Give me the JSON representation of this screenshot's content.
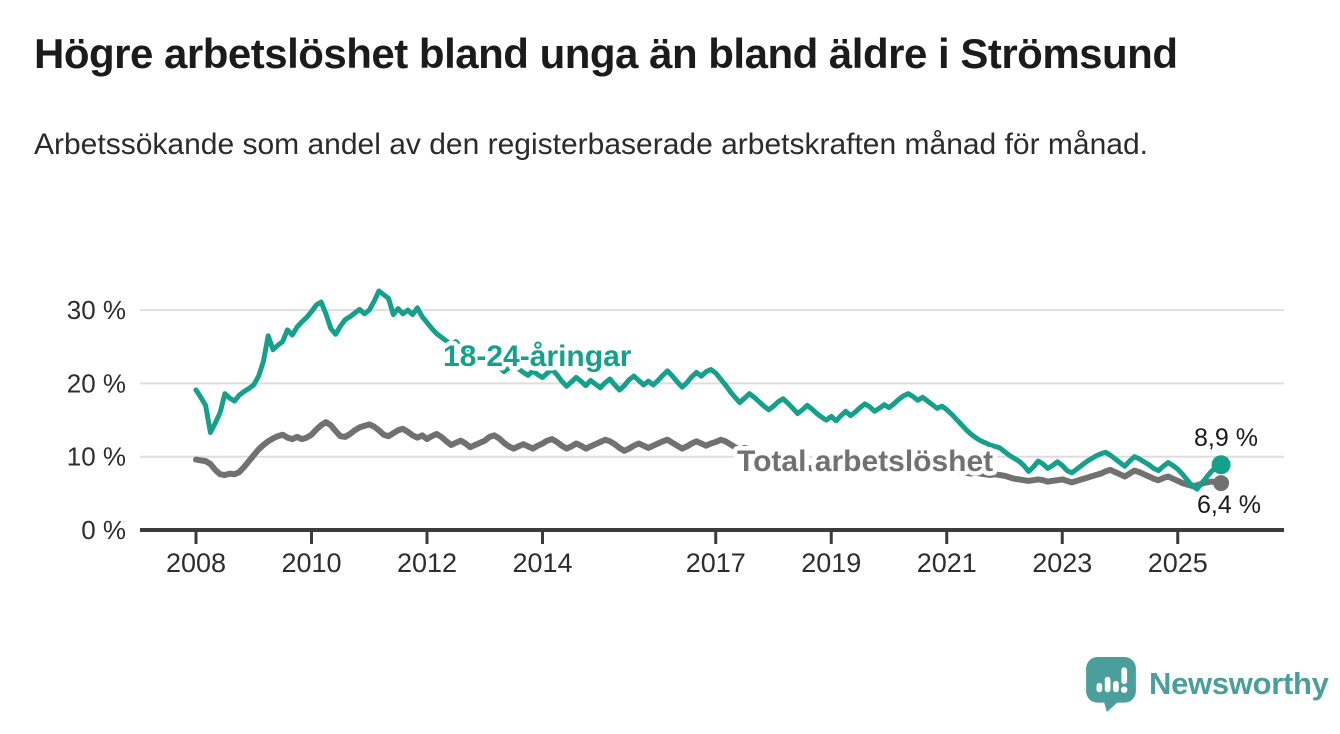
{
  "header": {
    "title": "Högre arbetslöshet bland unga än bland äldre i Strömsund",
    "subtitle": "Arbetssökande som andel av den registerbaserade arbetskraften månad för månad."
  },
  "chart_data": {
    "type": "line",
    "title": "Högre arbetslöshet bland unga än bland äldre i Strömsund",
    "subtitle": "Arbetssökande som andel av den registerbaserade arbetskraften månad för månad.",
    "grid": "horizontal",
    "legend_position": "inline-labels-on-lines",
    "x_axis": {
      "start_year": 2008,
      "months_per_point": 1,
      "ticks": [
        "2008",
        "2010",
        "2012",
        "2014",
        "2017",
        "2019",
        "2021",
        "2023",
        "2025"
      ]
    },
    "y_axis": {
      "unit": "%",
      "range": [
        0,
        34
      ],
      "ticks": [
        {
          "label": "0 %",
          "value": 0
        },
        {
          "label": "10 %",
          "value": 10
        },
        {
          "label": "20 %",
          "value": 20
        },
        {
          "label": "30 %",
          "value": 30
        }
      ]
    },
    "series": [
      {
        "name": "18-24-åringar",
        "color": "#16a08c",
        "end_label": "8,9 %",
        "end_value": 8.9,
        "values": [
          19.1,
          18.1,
          17.0,
          13.3,
          14.6,
          16.0,
          18.6,
          18.0,
          17.6,
          18.4,
          18.9,
          19.3,
          19.8,
          21.0,
          23.0,
          26.5,
          24.6,
          25.2,
          25.7,
          27.3,
          26.6,
          27.7,
          28.4,
          29.0,
          29.8,
          30.7,
          31.1,
          29.5,
          27.5,
          26.7,
          27.8,
          28.7,
          29.1,
          29.6,
          30.1,
          29.5,
          30.0,
          31.2,
          32.6,
          32.1,
          31.6,
          29.4,
          30.2,
          29.5,
          30.0,
          29.4,
          30.3,
          29.1,
          28.3,
          27.5,
          26.8,
          26.3,
          25.8,
          25.2,
          25.7,
          25.0,
          24.4,
          23.9,
          24.3,
          23.6,
          23.0,
          23.6,
          22.9,
          22.2,
          21.6,
          22.1,
          22.7,
          22.0,
          21.5,
          21.1,
          21.7,
          21.2,
          20.8,
          21.4,
          21.9,
          21.2,
          20.3,
          19.6,
          20.2,
          20.8,
          20.3,
          19.7,
          20.4,
          19.9,
          19.4,
          20.1,
          20.6,
          19.8,
          19.1,
          19.7,
          20.5,
          21.0,
          20.4,
          19.8,
          20.3,
          19.8,
          20.4,
          21.1,
          21.7,
          21.0,
          20.2,
          19.5,
          20.1,
          20.9,
          21.5,
          21.0,
          21.6,
          21.9,
          21.4,
          20.6,
          19.8,
          18.9,
          18.1,
          17.4,
          18.0,
          18.6,
          18.1,
          17.5,
          16.9,
          16.4,
          16.9,
          17.5,
          17.9,
          17.3,
          16.6,
          15.9,
          16.4,
          17.0,
          16.5,
          15.9,
          15.4,
          15.0,
          15.5,
          14.9,
          15.6,
          16.2,
          15.6,
          16.1,
          16.7,
          17.2,
          16.8,
          16.2,
          16.6,
          17.1,
          16.7,
          17.2,
          17.8,
          18.3,
          18.6,
          18.2,
          17.7,
          18.1,
          17.6,
          17.1,
          16.6,
          16.9,
          16.4,
          15.8,
          15.1,
          14.4,
          13.7,
          13.1,
          12.6,
          12.2,
          11.9,
          11.6,
          11.4,
          11.2,
          10.7,
          10.2,
          9.8,
          9.4,
          8.8,
          8.0,
          8.6,
          9.4,
          9.0,
          8.4,
          8.8,
          9.3,
          8.8,
          8.1,
          7.8,
          8.3,
          8.8,
          9.3,
          9.7,
          10.1,
          10.4,
          10.6,
          10.2,
          9.7,
          9.2,
          8.7,
          9.4,
          10.0,
          9.7,
          9.3,
          8.9,
          8.4,
          8.1,
          8.7,
          9.2,
          8.8,
          8.3,
          7.6,
          6.8,
          6.0,
          5.6,
          6.4,
          7.2,
          8.0,
          8.6,
          8.9
        ]
      },
      {
        "name": "Total arbetslöshet",
        "color": "#717171",
        "end_label": "6,4 %",
        "end_value": 6.4,
        "values": [
          9.6,
          9.5,
          9.4,
          9.0,
          8.2,
          7.6,
          7.5,
          7.7,
          7.6,
          7.9,
          8.6,
          9.4,
          10.2,
          11.0,
          11.6,
          12.1,
          12.5,
          12.8,
          13.0,
          12.6,
          12.4,
          12.7,
          12.4,
          12.6,
          13.0,
          13.7,
          14.3,
          14.7,
          14.3,
          13.5,
          12.8,
          12.7,
          13.1,
          13.6,
          14.0,
          14.2,
          14.4,
          14.1,
          13.6,
          13.0,
          12.8,
          13.2,
          13.6,
          13.8,
          13.4,
          12.9,
          12.6,
          12.9,
          12.4,
          12.8,
          13.1,
          12.7,
          12.1,
          11.6,
          11.9,
          12.2,
          11.8,
          11.3,
          11.6,
          11.9,
          12.2,
          12.7,
          12.9,
          12.5,
          11.9,
          11.4,
          11.1,
          11.4,
          11.7,
          11.4,
          11.1,
          11.5,
          11.8,
          12.2,
          12.4,
          12.0,
          11.5,
          11.1,
          11.4,
          11.8,
          11.5,
          11.1,
          11.4,
          11.7,
          12.0,
          12.3,
          12.1,
          11.7,
          11.2,
          10.8,
          11.1,
          11.5,
          11.8,
          11.5,
          11.2,
          11.5,
          11.8,
          12.1,
          12.3,
          11.9,
          11.5,
          11.1,
          11.4,
          11.8,
          12.1,
          11.8,
          11.5,
          11.8,
          12.0,
          12.3,
          12.1,
          11.7,
          11.3,
          10.9,
          11.2,
          11.0,
          10.6,
          10.1,
          9.7,
          9.3,
          9.0,
          8.8,
          8.6,
          8.5,
          8.4,
          8.3,
          8.4,
          8.5,
          8.4,
          8.3,
          8.4,
          8.5,
          8.4,
          8.3,
          8.4,
          8.5,
          8.4,
          8.3,
          8.4,
          8.6,
          8.5,
          8.4,
          8.5,
          8.6,
          8.7,
          8.8,
          9.0,
          9.2,
          9.1,
          8.9,
          8.8,
          8.7,
          8.6,
          8.5,
          8.4,
          8.3,
          8.2,
          8.1,
          8.0,
          7.9,
          7.8,
          7.7,
          7.8,
          7.7,
          7.6,
          7.5,
          7.6,
          7.5,
          7.4,
          7.2,
          7.0,
          6.9,
          6.8,
          6.7,
          6.8,
          6.9,
          6.8,
          6.6,
          6.7,
          6.8,
          6.9,
          6.7,
          6.5,
          6.7,
          6.9,
          7.1,
          7.3,
          7.5,
          7.7,
          8.0,
          8.2,
          7.9,
          7.6,
          7.3,
          7.7,
          8.1,
          7.9,
          7.6,
          7.3,
          7.0,
          6.8,
          7.1,
          7.3,
          7.0,
          6.7,
          6.4,
          6.2,
          6.0,
          6.1,
          6.3,
          6.5,
          6.6,
          6.5,
          6.4
        ]
      }
    ]
  },
  "footer": {
    "brand": "Newsworthy"
  },
  "colors": {
    "accent_teal": "#16a08c",
    "series_gray": "#717171",
    "logo_teal": "#4a9e9b",
    "grid": "#dedede",
    "axis": "#3b3b3b",
    "title_text": "#1b1b1b",
    "body_text": "#2b2b2b",
    "tick_text": "#2d2d2d",
    "value_text": "#1a1a1a"
  }
}
